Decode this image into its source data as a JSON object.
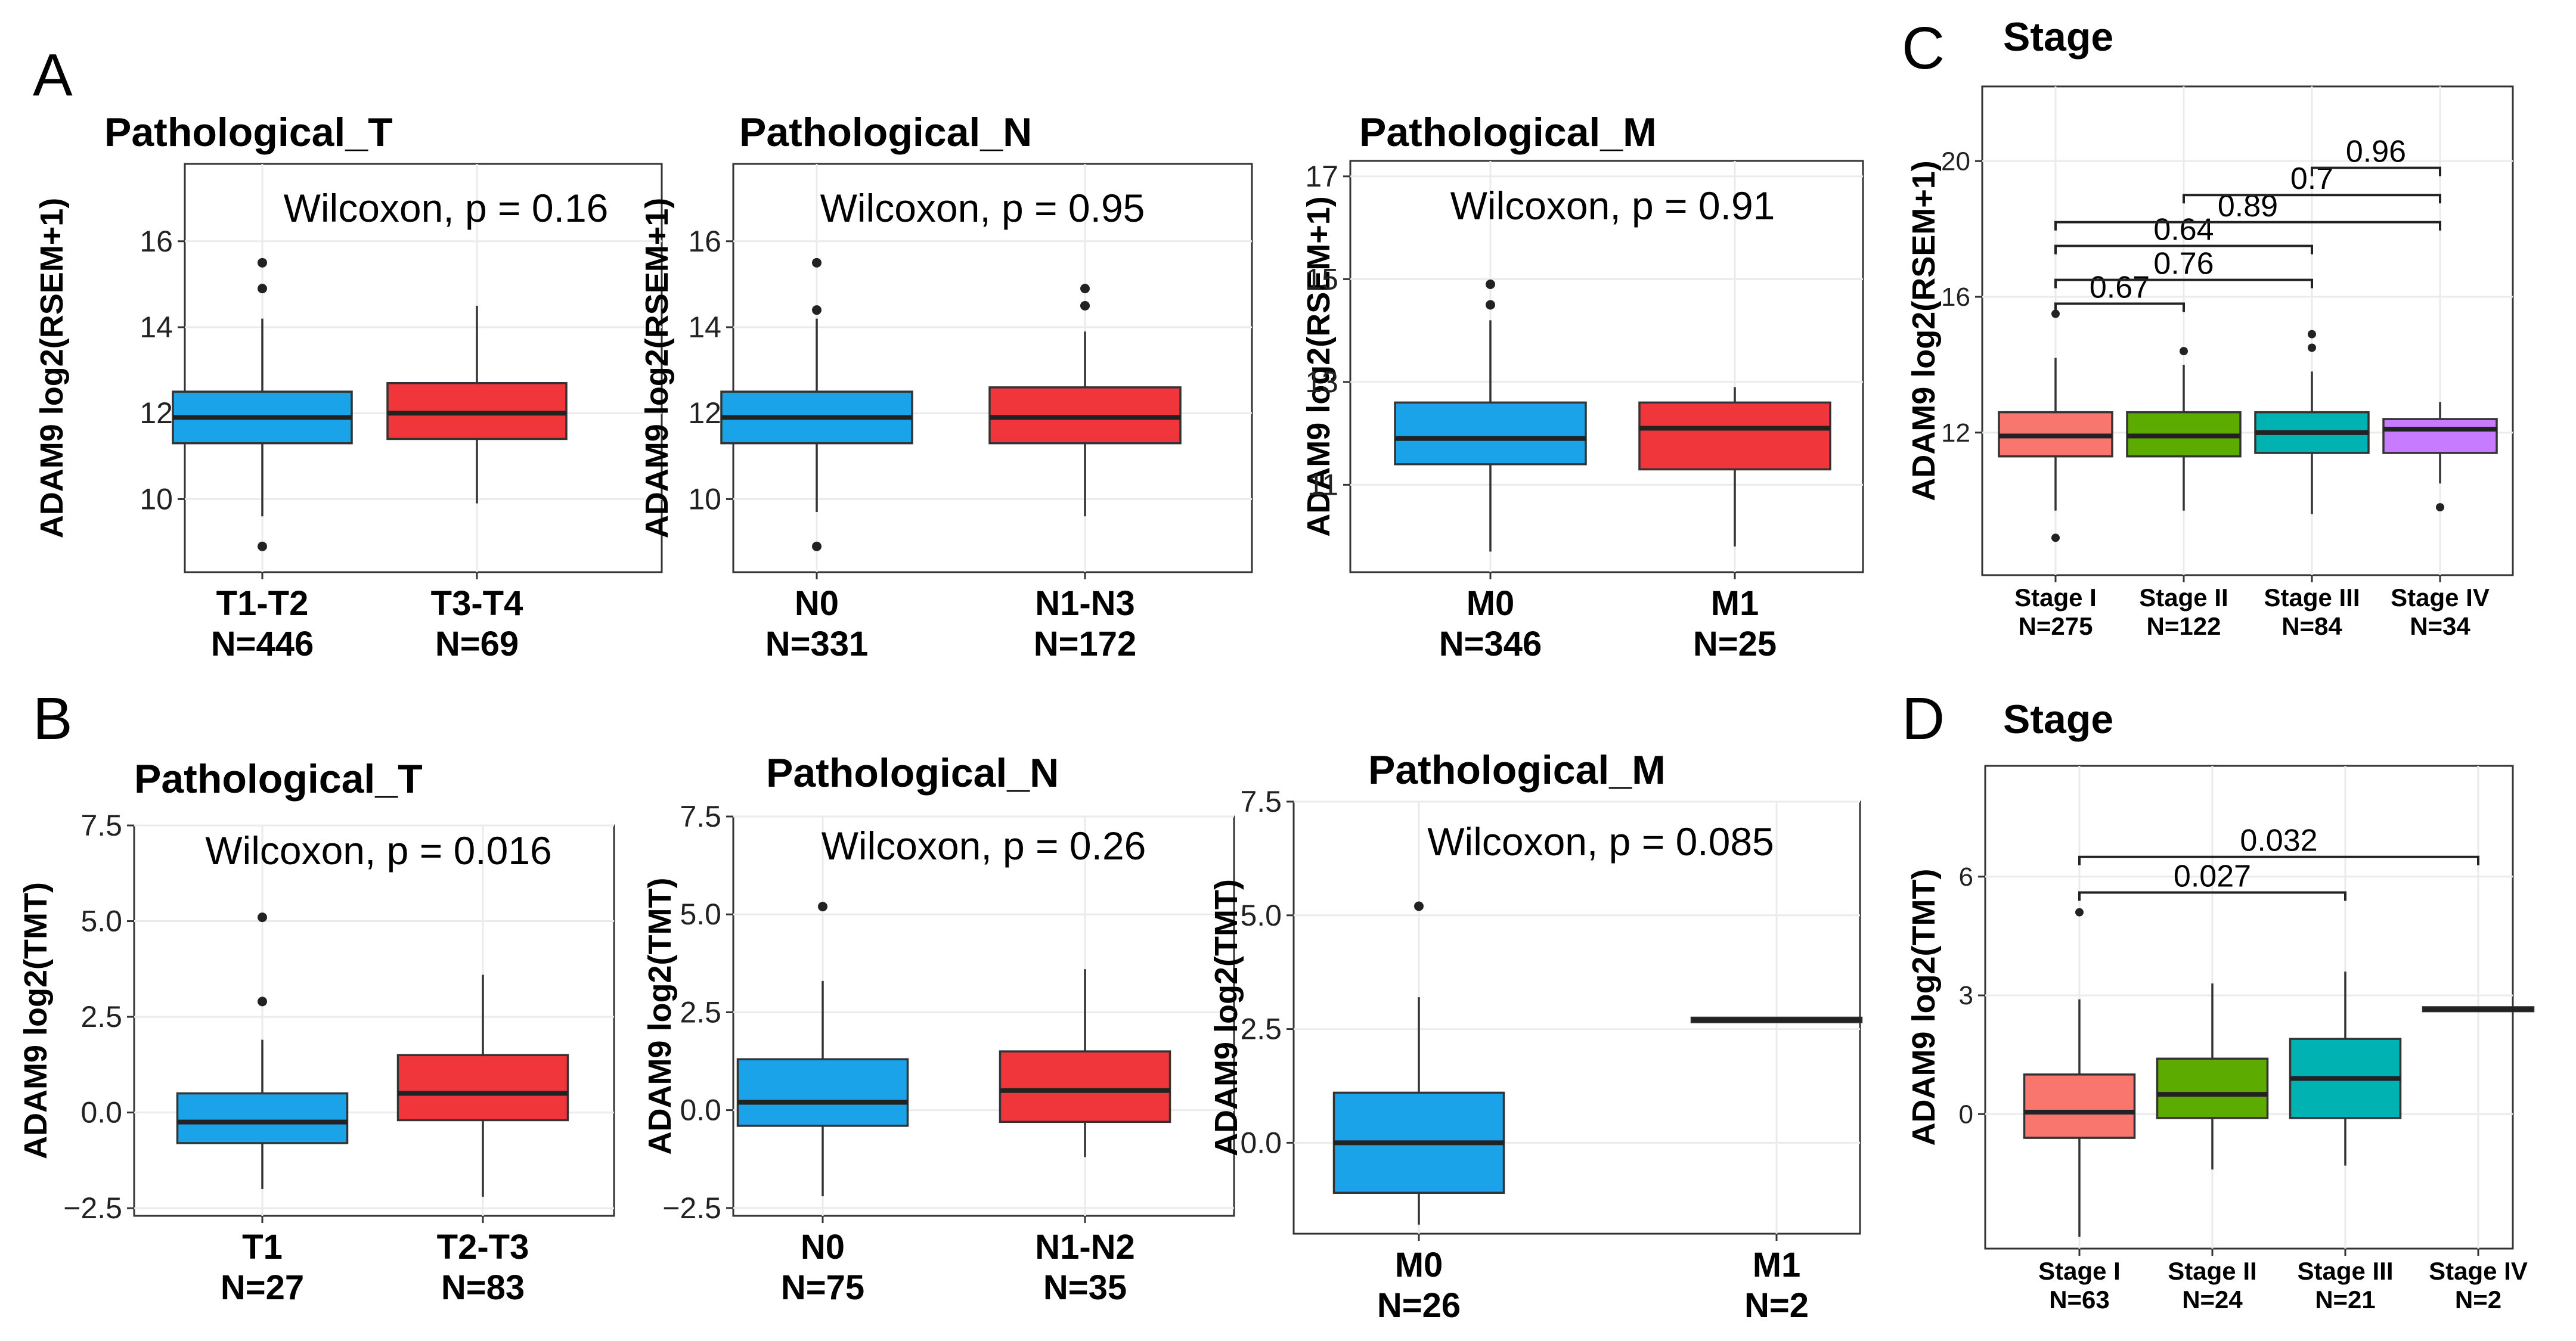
{
  "chart_data": [
    {
      "type": "box",
      "panel": "A",
      "title": "Pathological_T",
      "ylabel": "ADAM9 log2(RSEM+1)",
      "ylim": [
        8.3,
        17.8
      ],
      "yticks": [
        10,
        12,
        14,
        16
      ],
      "annotation": "Wilcoxon, p = 0.16",
      "groups": [
        {
          "label": "T1-T2",
          "n": "N=446",
          "color": "#1aa3e8",
          "min": 9.6,
          "q1": 11.3,
          "median": 11.9,
          "q3": 12.5,
          "max": 14.2,
          "outliers": [
            15.5,
            14.9,
            8.9
          ]
        },
        {
          "label": "T3-T4",
          "n": "N=69",
          "color": "#f0363b",
          "min": 9.9,
          "q1": 11.4,
          "median": 12.0,
          "q3": 12.7,
          "max": 14.5,
          "outliers": []
        }
      ]
    },
    {
      "type": "box",
      "panel": "A",
      "title": "Pathological_N",
      "ylabel": "ADAM9 log2(RSEM+1)",
      "ylim": [
        8.3,
        17.8
      ],
      "yticks": [
        10,
        12,
        14,
        16
      ],
      "annotation": "Wilcoxon, p = 0.95",
      "groups": [
        {
          "label": "N0",
          "n": "N=331",
          "color": "#1aa3e8",
          "min": 9.7,
          "q1": 11.3,
          "median": 11.9,
          "q3": 12.5,
          "max": 14.2,
          "outliers": [
            15.5,
            14.4,
            8.9
          ]
        },
        {
          "label": "N1-N3",
          "n": "N=172",
          "color": "#f0363b",
          "min": 9.6,
          "q1": 11.3,
          "median": 11.9,
          "q3": 12.6,
          "max": 13.9,
          "outliers": [
            14.9,
            14.5
          ]
        }
      ]
    },
    {
      "type": "box",
      "panel": "A",
      "title": "Pathological_M",
      "ylabel": "ADAM9 log2(RSEM+1)",
      "ylim": [
        9.3,
        17.3
      ],
      "yticks": [
        11,
        13,
        15,
        17
      ],
      "annotation": "Wilcoxon, p = 0.91",
      "groups": [
        {
          "label": "M0",
          "n": "N=346",
          "color": "#1aa3e8",
          "min": 9.7,
          "q1": 11.4,
          "median": 11.9,
          "q3": 12.6,
          "max": 14.2,
          "outliers": [
            14.9,
            14.5
          ]
        },
        {
          "label": "M1",
          "n": "N=25",
          "color": "#f0363b",
          "min": 9.8,
          "q1": 11.3,
          "median": 12.1,
          "q3": 12.6,
          "max": 12.9,
          "outliers": []
        }
      ]
    },
    {
      "type": "box",
      "panel": "B",
      "title": "Pathological_T",
      "ylabel": "ADAM9 log2(TMT)",
      "ylim": [
        -2.7,
        7.5
      ],
      "yticks": [
        -2.5,
        0.0,
        2.5,
        5.0,
        7.5
      ],
      "yticklabels": [
        "−2.5",
        "0.0",
        "2.5",
        "5.0",
        "7.5"
      ],
      "annotation": "Wilcoxon, p = 0.016",
      "groups": [
        {
          "label": "T1",
          "n": "N=27",
          "color": "#1aa3e8",
          "min": -2.0,
          "q1": -0.8,
          "median": -0.25,
          "q3": 0.5,
          "max": 1.9,
          "outliers": [
            5.1,
            2.9
          ]
        },
        {
          "label": "T2-T3",
          "n": "N=83",
          "color": "#f0363b",
          "min": -2.2,
          "q1": -0.2,
          "median": 0.5,
          "q3": 1.5,
          "max": 3.6,
          "outliers": []
        }
      ]
    },
    {
      "type": "box",
      "panel": "B",
      "title": "Pathological_N",
      "ylabel": "ADAM9 log2(TMT)",
      "ylim": [
        -2.7,
        7.5
      ],
      "yticks": [
        -2.5,
        0.0,
        2.5,
        5.0,
        7.5
      ],
      "yticklabels": [
        "−2.5",
        "0.0",
        "2.5",
        "5.0",
        "7.5"
      ],
      "annotation": "Wilcoxon, p = 0.26",
      "groups": [
        {
          "label": "N0",
          "n": "N=75",
          "color": "#1aa3e8",
          "min": -2.2,
          "q1": -0.4,
          "median": 0.2,
          "q3": 1.3,
          "max": 3.3,
          "outliers": [
            5.2
          ]
        },
        {
          "label": "N1-N2",
          "n": "N=35",
          "color": "#f0363b",
          "min": -1.2,
          "q1": -0.3,
          "median": 0.5,
          "q3": 1.5,
          "max": 3.6,
          "outliers": []
        }
      ]
    },
    {
      "type": "box",
      "panel": "B",
      "title": "Pathological_M",
      "ylabel": "ADAM9 log2(TMT)",
      "ylim": [
        -2.0,
        7.5
      ],
      "yticks": [
        0.0,
        2.5,
        5.0,
        7.5
      ],
      "yticklabels": [
        "0.0",
        "2.5",
        "5.0",
        "7.5"
      ],
      "annotation": "Wilcoxon, p = 0.085",
      "groups": [
        {
          "label": "M0",
          "n": "N=26",
          "color": "#1aa3e8",
          "min": -1.8,
          "q1": -1.1,
          "median": 0.0,
          "q3": 1.1,
          "max": 3.2,
          "outliers": [
            5.2
          ]
        },
        {
          "label": "M1",
          "n": "N=2",
          "color": "#f0363b",
          "min": 2.65,
          "q1": 2.65,
          "median": 2.7,
          "q3": 2.75,
          "max": 2.75,
          "outliers": []
        }
      ]
    },
    {
      "type": "box",
      "panel": "C",
      "title": "Stage",
      "ylabel": "ADAM9 log2(RSEM+1)",
      "ylim": [
        7.8,
        22.2
      ],
      "yticks": [
        12,
        16,
        20
      ],
      "groups": [
        {
          "label": "Stage I",
          "n": "N=275",
          "color": "#f8766d",
          "min": 9.7,
          "q1": 11.3,
          "median": 11.9,
          "q3": 12.6,
          "max": 14.2,
          "outliers": [
            15.5,
            8.9
          ]
        },
        {
          "label": "Stage II",
          "n": "N=122",
          "color": "#5bab00",
          "min": 9.7,
          "q1": 11.3,
          "median": 11.9,
          "q3": 12.6,
          "max": 14.0,
          "outliers": [
            14.4
          ]
        },
        {
          "label": "Stage III",
          "n": "N=84",
          "color": "#00b2b2",
          "min": 9.6,
          "q1": 11.4,
          "median": 12.0,
          "q3": 12.6,
          "max": 13.8,
          "outliers": [
            14.9,
            14.5
          ]
        },
        {
          "label": "Stage IV",
          "n": "N=34",
          "color": "#c77cff",
          "min": 10.5,
          "q1": 11.4,
          "median": 12.1,
          "q3": 12.4,
          "max": 12.9,
          "outliers": [
            9.8
          ]
        }
      ],
      "comparisons": [
        {
          "from": 0,
          "to": 1,
          "y": 15.8,
          "label": "0.67"
        },
        {
          "from": 0,
          "to": 2,
          "y": 16.5,
          "label": "0.76"
        },
        {
          "from": 0,
          "to": 2,
          "y": 17.5,
          "label": "0.64"
        },
        {
          "from": 0,
          "to": 3,
          "y": 18.2,
          "label": "0.89"
        },
        {
          "from": 1,
          "to": 3,
          "y": 19.0,
          "label": "0.7"
        },
        {
          "from": 2,
          "to": 3,
          "y": 19.8,
          "label": "0.96"
        }
      ]
    },
    {
      "type": "box",
      "panel": "D",
      "title": "Stage",
      "ylabel": "ADAM9 log2(TMT)",
      "ylim": [
        -3.4,
        8.8
      ],
      "yticks": [
        0,
        3,
        6
      ],
      "groups": [
        {
          "label": "Stage I",
          "n": "N=63",
          "color": "#f8766d",
          "min": -3.1,
          "q1": -0.6,
          "median": 0.05,
          "q3": 1.0,
          "max": 2.9,
          "outliers": [
            5.1
          ]
        },
        {
          "label": "Stage II",
          "n": "N=24",
          "color": "#5bab00",
          "min": -1.4,
          "q1": -0.1,
          "median": 0.5,
          "q3": 1.4,
          "max": 3.3,
          "outliers": []
        },
        {
          "label": "Stage III",
          "n": "N=21",
          "color": "#00b2b2",
          "min": -1.3,
          "q1": -0.1,
          "median": 0.9,
          "q3": 1.9,
          "max": 3.6,
          "outliers": []
        },
        {
          "label": "Stage IV",
          "n": "N=2",
          "color": "#f8766d",
          "min": 2.6,
          "q1": 2.6,
          "median": 2.65,
          "q3": 2.7,
          "max": 2.7,
          "outliers": []
        }
      ],
      "comparisons": [
        {
          "from": 0,
          "to": 2,
          "y": 5.6,
          "label": "0.027"
        },
        {
          "from": 0,
          "to": 3,
          "y": 6.5,
          "label": "0.032"
        }
      ]
    }
  ],
  "panel_letters": [
    "A",
    "B",
    "C",
    "D"
  ]
}
